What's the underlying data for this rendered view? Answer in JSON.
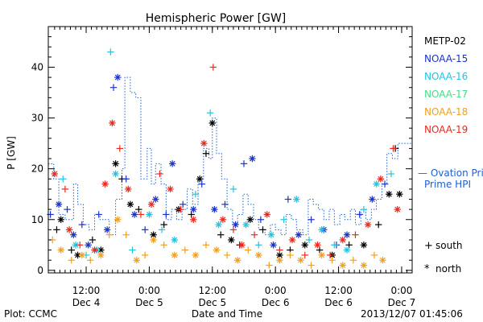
{
  "chart_data": {
    "type": "scatter",
    "title": "Hemispheric Power [GW]",
    "xlabel": "Date and Time",
    "ylabel": "P [GW]",
    "xlim": [
      -0.9,
      7.75
    ],
    "ylim": [
      -0.5,
      48
    ],
    "yticks": [
      0,
      10,
      20,
      30,
      40
    ],
    "xticks": [
      {
        "x": 0,
        "time": "12:00",
        "day": "Dec 4"
      },
      {
        "x": 1.5,
        "time": "0:00",
        "day": "Dec 5"
      },
      {
        "x": 3,
        "time": "12:00",
        "day": "Dec 5"
      },
      {
        "x": 4.5,
        "time": "0:00",
        "day": "Dec 6"
      },
      {
        "x": 6,
        "time": "12:00",
        "day": "Dec 6"
      },
      {
        "x": 7.5,
        "time": "0:00",
        "day": "Dec 7"
      }
    ],
    "legend": [
      {
        "name": "METP-02",
        "color": "#000000"
      },
      {
        "name": "NOAA-15",
        "color": "#1a33cc"
      },
      {
        "name": "NOAA-16",
        "color": "#22c4e0"
      },
      {
        "name": "NOAA-17",
        "color": "#44e088"
      },
      {
        "name": "NOAA-18",
        "color": "#f0a020"
      },
      {
        "name": "NOAA-19",
        "color": "#e82a20"
      }
    ],
    "ovation_label": "— Ovation Prime HPI",
    "ovation_color": "#1f5fd0",
    "ovation_steps": [
      [
        -0.9,
        21
      ],
      [
        -0.77,
        18
      ],
      [
        -0.65,
        11
      ],
      [
        -0.5,
        10
      ],
      [
        -0.3,
        17
      ],
      [
        -0.2,
        13
      ],
      [
        -0.07,
        9
      ],
      [
        0.07,
        8
      ],
      [
        0.2,
        11
      ],
      [
        0.33,
        10
      ],
      [
        0.45,
        10
      ],
      [
        0.55,
        7
      ],
      [
        0.7,
        14
      ],
      [
        0.85,
        20
      ],
      [
        0.92,
        38
      ],
      [
        1.05,
        35
      ],
      [
        1.18,
        34
      ],
      [
        1.3,
        18
      ],
      [
        1.45,
        24
      ],
      [
        1.55,
        17
      ],
      [
        1.65,
        21
      ],
      [
        1.78,
        17
      ],
      [
        1.9,
        10
      ],
      [
        2.03,
        12
      ],
      [
        2.15,
        10
      ],
      [
        2.28,
        12
      ],
      [
        2.4,
        16
      ],
      [
        2.53,
        13
      ],
      [
        2.66,
        18
      ],
      [
        2.79,
        24
      ],
      [
        2.92,
        22
      ],
      [
        3.0,
        30
      ],
      [
        3.1,
        23
      ],
      [
        3.22,
        18
      ],
      [
        3.35,
        12
      ],
      [
        3.48,
        9
      ],
      [
        3.6,
        11
      ],
      [
        3.73,
        15
      ],
      [
        3.85,
        13
      ],
      [
        3.98,
        10
      ],
      [
        4.1,
        8
      ],
      [
        4.25,
        7
      ],
      [
        4.38,
        9
      ],
      [
        4.5,
        8
      ],
      [
        4.63,
        7
      ],
      [
        4.75,
        11
      ],
      [
        4.88,
        10
      ],
      [
        5.0,
        8
      ],
      [
        5.15,
        7
      ],
      [
        5.28,
        14
      ],
      [
        5.4,
        13
      ],
      [
        5.52,
        12
      ],
      [
        5.65,
        10
      ],
      [
        5.78,
        12
      ],
      [
        5.9,
        9
      ],
      [
        6.03,
        11
      ],
      [
        6.15,
        10
      ],
      [
        6.28,
        12
      ],
      [
        6.4,
        9
      ],
      [
        6.53,
        12
      ],
      [
        6.65,
        10
      ],
      [
        6.78,
        12
      ],
      [
        6.9,
        14
      ],
      [
        7.03,
        17
      ],
      [
        7.15,
        23
      ],
      [
        7.28,
        22
      ],
      [
        7.41,
        25
      ],
      [
        7.75,
        25
      ]
    ],
    "series": [
      {
        "name": "METP-02",
        "marker": "mixed",
        "points": [
          [
            -0.7,
            8,
            "+"
          ],
          [
            -0.6,
            10,
            "*"
          ],
          [
            -0.35,
            4,
            "+"
          ],
          [
            -0.2,
            3,
            "*"
          ],
          [
            0.15,
            6,
            "+"
          ],
          [
            0.35,
            4,
            "*"
          ],
          [
            0.7,
            21,
            "*"
          ],
          [
            0.85,
            18,
            "+"
          ],
          [
            1.05,
            13,
            "*"
          ],
          [
            1.25,
            12,
            "+"
          ],
          [
            1.6,
            7,
            "*"
          ],
          [
            1.85,
            9,
            "+"
          ],
          [
            2.2,
            12,
            "*"
          ],
          [
            2.5,
            11,
            "+"
          ],
          [
            2.7,
            18,
            "*"
          ],
          [
            2.85,
            23,
            "+"
          ],
          [
            3.0,
            29,
            "*"
          ],
          [
            3.2,
            7,
            "+"
          ],
          [
            3.45,
            6,
            "*"
          ],
          [
            3.65,
            5,
            "+"
          ],
          [
            3.9,
            10,
            "*"
          ],
          [
            4.2,
            8,
            "+"
          ],
          [
            4.6,
            3,
            "*"
          ],
          [
            4.85,
            4,
            "+"
          ],
          [
            5.2,
            5,
            "*"
          ],
          [
            5.55,
            4,
            "+"
          ],
          [
            5.85,
            3,
            "*"
          ],
          [
            6.25,
            5,
            "+"
          ],
          [
            6.6,
            5,
            "*"
          ],
          [
            6.95,
            9,
            "+"
          ],
          [
            7.2,
            15,
            "*"
          ],
          [
            7.35,
            24,
            "+"
          ],
          [
            7.45,
            15,
            "*"
          ]
        ]
      },
      {
        "name": "NOAA-15",
        "marker": "mixed",
        "points": [
          [
            -0.85,
            11,
            "+"
          ],
          [
            -0.65,
            13,
            "*"
          ],
          [
            -0.45,
            12,
            "+"
          ],
          [
            -0.3,
            7,
            "*"
          ],
          [
            -0.1,
            9,
            "+"
          ],
          [
            0.05,
            5,
            "*"
          ],
          [
            0.3,
            11,
            "+"
          ],
          [
            0.5,
            8,
            "*"
          ],
          [
            0.65,
            36,
            "+"
          ],
          [
            0.75,
            38,
            "*"
          ],
          [
            0.95,
            18,
            "+"
          ],
          [
            1.15,
            11,
            "*"
          ],
          [
            1.4,
            8,
            "+"
          ],
          [
            1.65,
            14,
            "*"
          ],
          [
            1.9,
            11,
            "+"
          ],
          [
            2.05,
            21,
            "*"
          ],
          [
            2.3,
            13,
            "+"
          ],
          [
            2.55,
            12,
            "*"
          ],
          [
            2.75,
            17,
            "+"
          ],
          [
            3.05,
            12,
            "*"
          ],
          [
            3.3,
            13,
            "+"
          ],
          [
            3.55,
            9,
            "*"
          ],
          [
            3.75,
            21,
            "+"
          ],
          [
            3.95,
            22,
            "*"
          ],
          [
            4.15,
            10,
            "+"
          ],
          [
            4.45,
            5,
            "*"
          ],
          [
            4.8,
            14,
            "+"
          ],
          [
            5.05,
            7,
            "*"
          ],
          [
            5.35,
            10,
            "+"
          ],
          [
            5.65,
            8,
            "*"
          ],
          [
            5.95,
            5,
            "+"
          ],
          [
            6.2,
            7,
            "*"
          ],
          [
            6.5,
            11,
            "+"
          ],
          [
            6.8,
            14,
            "*"
          ],
          [
            7.1,
            17,
            "+"
          ]
        ]
      },
      {
        "name": "NOAA-16",
        "marker": "mixed",
        "points": [
          [
            -0.55,
            18,
            "+"
          ],
          [
            -0.25,
            5,
            "*"
          ],
          [
            0.0,
            3,
            "+"
          ],
          [
            0.25,
            4,
            "*"
          ],
          [
            0.58,
            43,
            "+"
          ],
          [
            0.7,
            19,
            "*"
          ],
          [
            1.1,
            4,
            "+"
          ],
          [
            1.5,
            11,
            "*"
          ],
          [
            1.8,
            8,
            "+"
          ],
          [
            2.1,
            6,
            "*"
          ],
          [
            2.6,
            15,
            "+"
          ],
          [
            2.95,
            31,
            "+"
          ],
          [
            3.15,
            9,
            "*"
          ],
          [
            3.5,
            16,
            "+"
          ],
          [
            3.8,
            9,
            "*"
          ],
          [
            4.1,
            5,
            "+"
          ],
          [
            4.4,
            7,
            "*"
          ],
          [
            4.7,
            10,
            "+"
          ],
          [
            5.0,
            14,
            "*"
          ],
          [
            5.3,
            6,
            "+"
          ],
          [
            5.6,
            8,
            "*"
          ],
          [
            5.9,
            5,
            "+"
          ],
          [
            6.2,
            4,
            "*"
          ],
          [
            6.6,
            12,
            "+"
          ],
          [
            6.9,
            17,
            "*"
          ],
          [
            7.25,
            19,
            "+"
          ]
        ]
      },
      {
        "name": "NOAA-18",
        "marker": "mixed",
        "points": [
          [
            -0.8,
            6,
            "+"
          ],
          [
            -0.6,
            4,
            "*"
          ],
          [
            -0.35,
            2,
            "+"
          ],
          [
            -0.1,
            3,
            "*"
          ],
          [
            0.1,
            2,
            "+"
          ],
          [
            0.35,
            3,
            "*"
          ],
          [
            0.55,
            7,
            "+"
          ],
          [
            0.75,
            10,
            "*"
          ],
          [
            0.95,
            7,
            "+"
          ],
          [
            1.2,
            2,
            "*"
          ],
          [
            1.4,
            3,
            "+"
          ],
          [
            1.6,
            6,
            "*"
          ],
          [
            1.85,
            5,
            "+"
          ],
          [
            2.1,
            3,
            "*"
          ],
          [
            2.35,
            4,
            "+"
          ],
          [
            2.6,
            3,
            "*"
          ],
          [
            2.85,
            5,
            "+"
          ],
          [
            3.1,
            4,
            "*"
          ],
          [
            3.35,
            3,
            "+"
          ],
          [
            3.6,
            2,
            "*"
          ],
          [
            3.85,
            4,
            "+"
          ],
          [
            4.1,
            3,
            "*"
          ],
          [
            4.35,
            1,
            "+"
          ],
          [
            4.6,
            2,
            "*"
          ],
          [
            4.85,
            3,
            "+"
          ],
          [
            5.1,
            2,
            "*"
          ],
          [
            5.35,
            1,
            "+"
          ],
          [
            5.6,
            3,
            "*"
          ],
          [
            5.85,
            2,
            "+"
          ],
          [
            6.1,
            1,
            "*"
          ],
          [
            6.35,
            2,
            "+"
          ],
          [
            6.6,
            1,
            "*"
          ],
          [
            6.85,
            3,
            "+"
          ],
          [
            7.05,
            2,
            "*"
          ]
        ]
      },
      {
        "name": "NOAA-19",
        "marker": "mixed",
        "points": [
          [
            -0.75,
            19,
            "*"
          ],
          [
            -0.5,
            16,
            "+"
          ],
          [
            -0.4,
            8,
            "*"
          ],
          [
            -0.15,
            5,
            "+"
          ],
          [
            0.2,
            4,
            "*"
          ],
          [
            0.45,
            17,
            "*"
          ],
          [
            0.62,
            29,
            "*"
          ],
          [
            0.8,
            24,
            "+"
          ],
          [
            1.0,
            16,
            "*"
          ],
          [
            1.3,
            11,
            "+"
          ],
          [
            1.55,
            13,
            "*"
          ],
          [
            1.75,
            19,
            "+"
          ],
          [
            2.0,
            16,
            "*"
          ],
          [
            2.25,
            12,
            "+"
          ],
          [
            2.55,
            10,
            "*"
          ],
          [
            2.8,
            25,
            "*"
          ],
          [
            3.02,
            40,
            "+"
          ],
          [
            3.25,
            10,
            "*"
          ],
          [
            3.5,
            8,
            "+"
          ],
          [
            3.7,
            5,
            "*"
          ],
          [
            4.0,
            7,
            "+"
          ],
          [
            4.3,
            11,
            "*"
          ],
          [
            4.6,
            4,
            "+"
          ],
          [
            4.9,
            6,
            "*"
          ],
          [
            5.2,
            3,
            "+"
          ],
          [
            5.5,
            5,
            "*"
          ],
          [
            5.8,
            3,
            "+"
          ],
          [
            6.1,
            6,
            "*"
          ],
          [
            6.4,
            7,
            "+"
          ],
          [
            6.7,
            9,
            "*"
          ],
          [
            7.0,
            18,
            "*"
          ],
          [
            7.3,
            24,
            "+"
          ],
          [
            7.4,
            12,
            "*"
          ]
        ]
      }
    ],
    "symbol_key": [
      {
        "symbol": "+",
        "label": "south"
      },
      {
        "symbol": "*",
        "label": "north"
      }
    ]
  },
  "footer": {
    "left": "Plot: CCMC",
    "right": "2013/12/07 01:45:06"
  }
}
